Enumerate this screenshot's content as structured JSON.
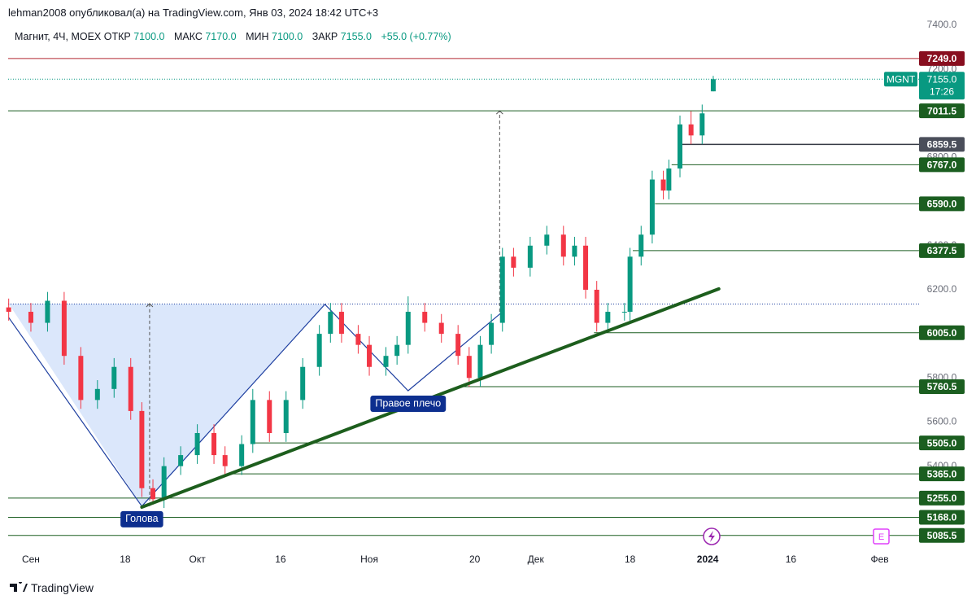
{
  "header": {
    "publisher": "lehman2008 опубликовал(а) на TradingView.com, Янв 03, 2024 18:42 UTC+3"
  },
  "chart_data": {
    "type": "candlestick",
    "symbol": "Магнит, 4Ч, MOEX",
    "ohlc_legend": [
      {
        "label": "ОТКР",
        "value": 7100,
        "value_label": "7100.0"
      },
      {
        "label": "МАКС",
        "value": 7170,
        "value_label": "7170.0"
      },
      {
        "label": "МИН",
        "value": 7100,
        "value_label": "7100.0"
      },
      {
        "label": "ЗАКР",
        "value": 7155,
        "value_label": "7155.0"
      }
    ],
    "change": {
      "value": 55,
      "percent": 0.77,
      "label": "+55.0 (+0.77%)"
    },
    "up_color": "#089981",
    "down_color": "#f23645",
    "x": [
      -4,
      0,
      3,
      6,
      9,
      12,
      15,
      18,
      20,
      22,
      24,
      27,
      30,
      33,
      35,
      38,
      40,
      43,
      46,
      49,
      52,
      54,
      56,
      59,
      61,
      64,
      66,
      68,
      71,
      74,
      77,
      79,
      81,
      83,
      85,
      87,
      90,
      93,
      96,
      98,
      100,
      102,
      104,
      107,
      108,
      110,
      112,
      114,
      115,
      117,
      119,
      121,
      123
    ],
    "open": [
      6120,
      6100,
      6050,
      6150,
      5900,
      5700,
      5750,
      5850,
      5650,
      5300,
      5250,
      5400,
      5450,
      5550,
      5450,
      5400,
      5500,
      5700,
      5550,
      5700,
      5850,
      6000,
      6100,
      6000,
      5950,
      5850,
      5900,
      5950,
      6100,
      6050,
      6000,
      5900,
      5800,
      5950,
      6050,
      6350,
      6300,
      6400,
      6450,
      6350,
      6400,
      6200,
      6050,
      6100,
      6100,
      6350,
      6450,
      6700,
      6650,
      6750,
      6950,
      6900,
      7100
    ],
    "high": [
      6160,
      6140,
      6190,
      6190,
      5940,
      5790,
      5890,
      5890,
      5690,
      5340,
      5440,
      5490,
      5590,
      5590,
      5490,
      5540,
      5750,
      5740,
      5740,
      5890,
      6040,
      6140,
      6140,
      6040,
      5990,
      5940,
      5990,
      6170,
      6140,
      6090,
      6040,
      5940,
      5990,
      6090,
      6390,
      6390,
      6440,
      6490,
      6490,
      6440,
      6440,
      6240,
      6140,
      6140,
      6390,
      6490,
      6740,
      6740,
      6790,
      6990,
      7010,
      7040,
      7170
    ],
    "low": [
      6060,
      6010,
      6010,
      5860,
      5660,
      5660,
      5710,
      5610,
      5260,
      5225,
      5210,
      5360,
      5410,
      5410,
      5360,
      5360,
      5460,
      5510,
      5510,
      5660,
      5810,
      5960,
      5960,
      5910,
      5810,
      5810,
      5860,
      5910,
      6010,
      5960,
      5860,
      5760,
      5760,
      5910,
      6010,
      6260,
      6260,
      6360,
      6310,
      6310,
      6160,
      6010,
      6010,
      6060,
      6060,
      6310,
      6410,
      6610,
      6610,
      6710,
      6860,
      6860,
      7100
    ],
    "close": [
      6100,
      6050,
      6150,
      5900,
      5700,
      5750,
      5850,
      5650,
      5300,
      5250,
      5400,
      5450,
      5550,
      5450,
      5400,
      5500,
      5700,
      5550,
      5700,
      5850,
      6000,
      6100,
      6000,
      5950,
      5850,
      5900,
      5950,
      6100,
      6050,
      6000,
      5900,
      5800,
      5950,
      6050,
      6350,
      6300,
      6400,
      6450,
      6350,
      6400,
      6200,
      6050,
      6100,
      6100,
      6350,
      6450,
      6700,
      6650,
      6750,
      6950,
      6900,
      7000,
      7155
    ],
    "xlim": [
      -4.1,
      160.1
    ],
    "ylim": [
      5022,
      7433
    ],
    "xticks": [
      {
        "value": 0,
        "label": "Сен"
      },
      {
        "value": 17,
        "label": "18"
      },
      {
        "value": 30,
        "label": "Окт"
      },
      {
        "value": 45,
        "label": "16"
      },
      {
        "value": 61,
        "label": "Ноя"
      },
      {
        "value": 80,
        "label": "20"
      },
      {
        "value": 91,
        "label": "Дек"
      },
      {
        "value": 108,
        "label": "18"
      },
      {
        "value": 122,
        "label": "2024"
      },
      {
        "value": 137,
        "label": "16"
      },
      {
        "value": 153,
        "label": "Фев"
      }
    ],
    "yticks": [
      {
        "value": 5400,
        "label": "5400.0"
      },
      {
        "value": 5600,
        "label": "5600.0"
      },
      {
        "value": 5800,
        "label": "5800.0"
      },
      {
        "value": 6200,
        "label": "6200.0"
      },
      {
        "value": 6400,
        "label": "6400.0"
      },
      {
        "value": 6800,
        "label": "6800.0"
      },
      {
        "value": 7200,
        "label": "7200.0"
      },
      {
        "value": 7400,
        "label": "7400.0"
      }
    ],
    "levels": [
      {
        "value": 7249,
        "label": "7249.0",
        "x_start": -4.1,
        "color": "#b22833",
        "box": "#880e1f"
      },
      {
        "value": 7011.5,
        "label": "7011.5",
        "x_start": -4.1,
        "color": "#1b5e20",
        "box": "#1b5e20"
      },
      {
        "value": 6859.5,
        "label": "6859.5",
        "x_start": 117,
        "color": "#363a45",
        "box": "#4a4e5a"
      },
      {
        "value": 6767,
        "label": "6767.0",
        "x_start": 115.5,
        "color": "#1b5e20",
        "box": "#1b5e20"
      },
      {
        "value": 6590,
        "label": "6590.0",
        "x_start": 112.5,
        "color": "#1b5e20",
        "box": "#1b5e20"
      },
      {
        "value": 6377.5,
        "label": "6377.5",
        "x_start": 108.5,
        "color": "#1b5e20",
        "box": "#1b5e20"
      },
      {
        "value": 6005,
        "label": "6005.0",
        "x_start": 101.5,
        "color": "#1b5e20",
        "box": "#1b5e20"
      },
      {
        "value": 5760.5,
        "label": "5760.5",
        "x_start": 78,
        "color": "#1b5e20",
        "box": "#1b5e20"
      },
      {
        "value": 5505,
        "label": "5505.0",
        "x_start": 40,
        "color": "#1b5e20",
        "box": "#1b5e20"
      },
      {
        "value": 5365,
        "label": "5365.0",
        "x_start": 35.5,
        "color": "#1b5e20",
        "box": "#1b5e20"
      },
      {
        "value": 5255,
        "label": "5255.0",
        "x_start": -4.1,
        "color": "#1b5e20",
        "box": "#1b5e20"
      },
      {
        "value": 5168,
        "label": "5168.0",
        "x_start": -4.1,
        "color": "#1b5e20",
        "box": "#1b5e20"
      },
      {
        "value": 5085.5,
        "label": "5085.5",
        "x_start": -4.1,
        "color": "#1b5e20",
        "box": "#1b5e20"
      }
    ],
    "last": {
      "symbol": "MGNT",
      "value": 7155,
      "label": "7155.0",
      "countdown": "17:26",
      "color": "#089981"
    },
    "pattern": {
      "x": [
        -4,
        20,
        53,
        68,
        85
      ],
      "y": [
        6074,
        5218,
        6134,
        5742,
        6100
      ],
      "color": "#1e3fa0"
    },
    "shade": {
      "x": [
        -4,
        20,
        53
      ],
      "y": [
        6137,
        5218,
        6134
      ],
      "color": "#dbe7fb"
    },
    "neckline": {
      "value": 6135,
      "color": "#1e3fa0"
    },
    "targets": [
      {
        "x": 21.4,
        "from": 5218,
        "to": 6137
      },
      {
        "x": 84.5,
        "from": 6100,
        "to": 7011.5
      }
    ],
    "trendline": {
      "x": [
        20,
        124
      ],
      "y": [
        5214,
        6204
      ],
      "color": "#1d5e1d"
    },
    "annotations": [
      {
        "text": "Голова",
        "x": 20,
        "y": 5218
      },
      {
        "text": "Правое плечо",
        "x": 68,
        "y": 5742
      }
    ]
  },
  "footer": {
    "brand": "TradingView"
  }
}
